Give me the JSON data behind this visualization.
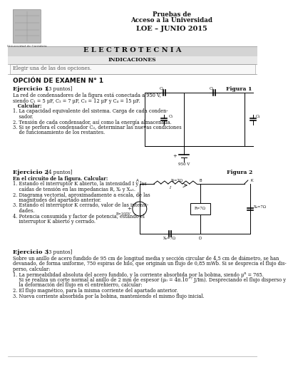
{
  "title1": "Pruebas de",
  "title2": "Acceso a la Universidad",
  "title3": "LOE – JUNIO 2015",
  "subject": "ELECTROTECNIA",
  "indicaciones": "INDICACIONES",
  "elegir": "Elegir una de las dos opciones.",
  "opcion": "OPCIÓN DE EXAMEN N° 1",
  "ej1_title": "Ejercicio 1",
  "ej1_pts": " [3 puntos]",
  "ej1_figura": "Figura 1",
  "ej1_text": [
    "La red de condensadores de la figura está conectada a 950 V,",
    "siendo C₁ = 5 μF, C₂ = 7 μF, C₃ = 12 μF y C₄ = 15 μF.",
    "   Calcular:",
    "1. La capacidad equivalente del sistema. Carga de cada conden-",
    "    sador.",
    "2. Tensión de cada condensador, así como la energía almacenada.",
    "3. Si se perfora el condensador C₂, determinar las nuevas condiciones",
    "    de funcionamiento de los restantes."
  ],
  "ej2_title": "Ejercicio 2",
  "ej2_pts": " [4 puntos]",
  "ej2_figura": "Figura 2",
  "ej2_text": [
    "En el circuito de la figura. Calcular:",
    "1. Estando el interruptor K abierto, la intensidad I y las",
    "    caídas de tensión en las impedancias R, Xₗ y Xₙ₁.",
    "2. Diagrama vectorial, aproximadamente a escala, de las",
    "    magnitudes del apartado anterior.",
    "3. Estando el interruptor K cerrado, valor de las intensi-",
    "    dades.",
    "4. Potencia consumida y factor de potencia, estando el",
    "    interruptor K abierto y cerrado."
  ],
  "ej3_title": "Ejercicio 3",
  "ej3_pts": " [3 puntos]",
  "ej3_text": [
    "Sobre un anillo de acero fundido de 95 cm de longitud media y sección circular de 4,5 cm de diámetro, se han",
    "devanado, de forma uniforme, 750 espiras de hilo, que originan un flujo de 0,85 mWb. Si se desprecia el flujo dis-",
    "perso, calcular:",
    "1. La permeabilidad absoluta del acero fundido, y la corriente absorbida por la bobina, siendo μᴿ = 765.",
    "    Si se realiza un corte normal al anillo de 2 mm de espesor (μ₀ = 4π.10⁻⁷ J/Im). Despreciando el flujo disperso y",
    "    la deformación del flujo en el entrehierro, calcular:",
    "2. El flujo magnético, para la misma corriente del apartado anterior.",
    "3. Nueva corriente absorbida por la bobina, manteniendo el mismo flujo inicial."
  ],
  "bg_color": "#ffffff",
  "text_color": "#111111",
  "gray_bar": "#d4d4d4",
  "light_bar": "#e8e8e8"
}
